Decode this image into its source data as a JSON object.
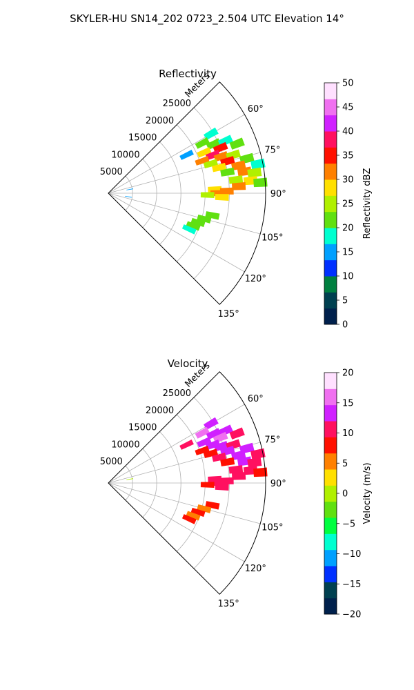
{
  "suptitle": "SKYLER-HU  SN14_202  0723_2.504 UTC Elevation 14°",
  "chart_data": [
    {
      "type": "heatmap",
      "projection": "polar-sector",
      "title": "Reflectivity",
      "radial_label": "Meters",
      "radial_ticks": [
        "5000",
        "10000",
        "15000",
        "20000",
        "25000"
      ],
      "radial_tick_values": [
        5000,
        10000,
        15000,
        20000,
        25000
      ],
      "rmax": 32500,
      "theta_range_deg": [
        45,
        135
      ],
      "theta_ticks": [
        "60°",
        "75°",
        "90°",
        "105°",
        "120°",
        "135°"
      ],
      "theta_tick_values": [
        60,
        75,
        90,
        105,
        120,
        135
      ],
      "grid": true,
      "colorbar": {
        "label": "Reflectivity dBZ",
        "min": 0,
        "max": 50,
        "ticks": [
          "0",
          "5",
          "10",
          "15",
          "20",
          "25",
          "30",
          "35",
          "40",
          "45",
          "50"
        ],
        "tick_values": [
          0,
          5,
          10,
          15,
          20,
          25,
          30,
          35,
          40,
          45,
          50
        ],
        "colors": [
          "#00204c",
          "#004050",
          "#008040",
          "#0030ff",
          "#00a0ff",
          "#00ffd0",
          "#60e010",
          "#b0f000",
          "#ffe000",
          "#ff8000",
          "#ff1000",
          "#ff1060",
          "#d020ff",
          "#f070f0",
          "#ffe0ff"
        ]
      },
      "echoes": [
        {
          "theta": 60,
          "r": 24500,
          "value": 17
        },
        {
          "theta": 62,
          "r": 22000,
          "value": 20
        },
        {
          "theta": 64,
          "r": 18000,
          "value": 16
        },
        {
          "theta": 65,
          "r": 24000,
          "value": 22
        },
        {
          "theta": 66,
          "r": 26500,
          "value": 19
        },
        {
          "theta": 67,
          "r": 21500,
          "value": 28
        },
        {
          "theta": 68,
          "r": 25000,
          "value": 34
        },
        {
          "theta": 69,
          "r": 28500,
          "value": 20
        },
        {
          "theta": 70,
          "r": 23000,
          "value": 37
        },
        {
          "theta": 71,
          "r": 20500,
          "value": 30
        },
        {
          "theta": 72,
          "r": 24500,
          "value": 30
        },
        {
          "theta": 73,
          "r": 27000,
          "value": 26
        },
        {
          "theta": 74,
          "r": 22000,
          "value": 24
        },
        {
          "theta": 75,
          "r": 25500,
          "value": 35
        },
        {
          "theta": 76,
          "r": 29500,
          "value": 22
        },
        {
          "theta": 77,
          "r": 23500,
          "value": 27
        },
        {
          "theta": 78,
          "r": 27500,
          "value": 30
        },
        {
          "theta": 79,
          "r": 31500,
          "value": 18
        },
        {
          "theta": 80,
          "r": 25000,
          "value": 22
        },
        {
          "theta": 81,
          "r": 28500,
          "value": 33
        },
        {
          "theta": 82,
          "r": 30500,
          "value": 24
        },
        {
          "theta": 84,
          "r": 26500,
          "value": 25
        },
        {
          "theta": 85,
          "r": 29500,
          "value": 28
        },
        {
          "theta": 86,
          "r": 31500,
          "value": 20
        },
        {
          "theta": 87,
          "r": 27000,
          "value": 30
        },
        {
          "theta": 88,
          "r": 22000,
          "value": 28
        },
        {
          "theta": 89,
          "r": 24500,
          "value": 33
        },
        {
          "theta": 90,
          "r": 22500,
          "value": 32
        },
        {
          "theta": 91,
          "r": 20500,
          "value": 26
        },
        {
          "theta": 92,
          "r": 23500,
          "value": 28
        },
        {
          "theta": 80,
          "r": 4500,
          "value": 16
        },
        {
          "theta": 100,
          "r": 4200,
          "value": 14
        },
        {
          "theta": 102,
          "r": 22000,
          "value": 21
        },
        {
          "theta": 105,
          "r": 20500,
          "value": 22
        },
        {
          "theta": 108,
          "r": 19500,
          "value": 20
        },
        {
          "theta": 111,
          "r": 18800,
          "value": 21
        },
        {
          "theta": 114,
          "r": 18300,
          "value": 19
        }
      ]
    },
    {
      "type": "heatmap",
      "projection": "polar-sector",
      "title": "Velocity",
      "radial_label": "Meters",
      "radial_ticks": [
        "5000",
        "10000",
        "15000",
        "20000",
        "25000"
      ],
      "radial_tick_values": [
        5000,
        10000,
        15000,
        20000,
        25000
      ],
      "rmax": 32500,
      "theta_range_deg": [
        45,
        135
      ],
      "theta_ticks": [
        "60°",
        "75°",
        "90°",
        "105°",
        "120°",
        "135°"
      ],
      "theta_tick_values": [
        60,
        75,
        90,
        105,
        120,
        135
      ],
      "grid": true,
      "colorbar": {
        "label": "Velocity (m/s)",
        "min": -20,
        "max": 20,
        "ticks": [
          "−20",
          "−15",
          "−10",
          "−5",
          "0",
          "5",
          "10",
          "15",
          "20"
        ],
        "tick_values": [
          -20,
          -15,
          -10,
          -5,
          0,
          5,
          10,
          15,
          20
        ],
        "colors": [
          "#00204c",
          "#004050",
          "#0030ff",
          "#00a0ff",
          "#00ffd0",
          "#00ff40",
          "#60e010",
          "#b0f000",
          "#ffe000",
          "#ff8000",
          "#ff1000",
          "#ff1060",
          "#d020ff",
          "#f070f0",
          "#ffe0ff"
        ]
      },
      "echoes": [
        {
          "theta": 60,
          "r": 24500,
          "value": 12
        },
        {
          "theta": 62,
          "r": 22000,
          "value": 15
        },
        {
          "theta": 64,
          "r": 18000,
          "value": 11
        },
        {
          "theta": 65,
          "r": 24000,
          "value": 14
        },
        {
          "theta": 66,
          "r": 26500,
          "value": 13
        },
        {
          "theta": 67,
          "r": 21500,
          "value": 12
        },
        {
          "theta": 68,
          "r": 25000,
          "value": 15
        },
        {
          "theta": 69,
          "r": 28500,
          "value": 11
        },
        {
          "theta": 70,
          "r": 23000,
          "value": 14
        },
        {
          "theta": 71,
          "r": 20500,
          "value": 9
        },
        {
          "theta": 72,
          "r": 24500,
          "value": 13
        },
        {
          "theta": 73,
          "r": 27000,
          "value": 10
        },
        {
          "theta": 74,
          "r": 22000,
          "value": 8
        },
        {
          "theta": 75,
          "r": 25500,
          "value": 12
        },
        {
          "theta": 76,
          "r": 29500,
          "value": 14
        },
        {
          "theta": 77,
          "r": 23500,
          "value": 10
        },
        {
          "theta": 78,
          "r": 27500,
          "value": 13
        },
        {
          "theta": 79,
          "r": 31500,
          "value": 11
        },
        {
          "theta": 80,
          "r": 25000,
          "value": 9
        },
        {
          "theta": 81,
          "r": 28500,
          "value": 12
        },
        {
          "theta": 82,
          "r": 30500,
          "value": 10
        },
        {
          "theta": 84,
          "r": 26500,
          "value": 10
        },
        {
          "theta": 85,
          "r": 29500,
          "value": 11
        },
        {
          "theta": 86,
          "r": 31500,
          "value": 9
        },
        {
          "theta": 87,
          "r": 27000,
          "value": 10
        },
        {
          "theta": 88,
          "r": 22000,
          "value": 10
        },
        {
          "theta": 89,
          "r": 24500,
          "value": 11
        },
        {
          "theta": 90,
          "r": 22500,
          "value": 10
        },
        {
          "theta": 91,
          "r": 20500,
          "value": 9
        },
        {
          "theta": 92,
          "r": 23500,
          "value": 10
        },
        {
          "theta": 80,
          "r": 4500,
          "value": 1
        },
        {
          "theta": 102,
          "r": 22000,
          "value": 7
        },
        {
          "theta": 105,
          "r": 20500,
          "value": 6
        },
        {
          "theta": 108,
          "r": 19500,
          "value": 7
        },
        {
          "theta": 111,
          "r": 18800,
          "value": 6
        },
        {
          "theta": 114,
          "r": 18300,
          "value": 7
        }
      ]
    }
  ]
}
